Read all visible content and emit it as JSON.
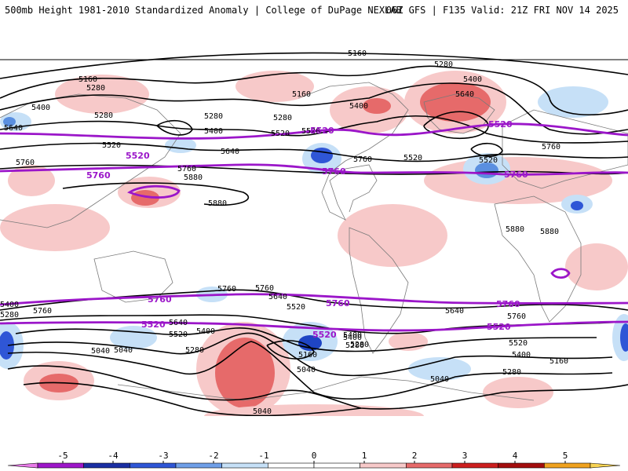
{
  "header": {
    "title_left": "500mb Height 1981-2010 Standardized Anomaly | College of DuPage NEXLAB",
    "title_right": "06Z GFS | F135 Valid: 21Z FRI NOV 14 2025"
  },
  "colors": {
    "contour_black": "#000000",
    "contour_purple": "#9b16c9",
    "land_outline": "#7a7a7a",
    "anom_pos1": "#f7c9c9",
    "anom_pos2": "#e66a6a",
    "anom_neg1": "#c6e0f7",
    "anom_neg2": "#5a8fe0",
    "anom_neg3": "#1f45c4"
  },
  "map": {
    "contour_labels": [
      "5160",
      "5280",
      "5160",
      "5280",
      "5400",
      "5160",
      "5400",
      "5640",
      "5280",
      "5280",
      "5400",
      "5400",
      "5640",
      "5520",
      "5520",
      "5280",
      "5640",
      "5760",
      "5880",
      "5760",
      "5880",
      "5760",
      "5520",
      "5760",
      "5520",
      "5520",
      "5880",
      "5880",
      "5760",
      "5760",
      "5640",
      "5520",
      "5400",
      "5280",
      "5040",
      "5040",
      "5040",
      "5400",
      "5640",
      "5520",
      "5400",
      "5280",
      "5160",
      "5040",
      "5640",
      "5760",
      "5520",
      "5400",
      "5280",
      "5160",
      "5400",
      "5280",
      "5040",
      "5760",
      "5280"
    ],
    "purple_labels": [
      "5520",
      "5520",
      "5520",
      "5760",
      "5760",
      "5760",
      "5760",
      "5760",
      "5760",
      "5520",
      "5520",
      "5520"
    ]
  },
  "colorbar": {
    "ticks": [
      "-5",
      "-4",
      "-3",
      "-2",
      "-1",
      "0",
      "1",
      "2",
      "3",
      "4",
      "5"
    ],
    "colors": [
      "#e87be8",
      "#9d16c9",
      "#1a2fa3",
      "#2f56d6",
      "#6f9fe8",
      "#c6e0f7",
      "#ffffff",
      "#ffffff",
      "#f7c9c9",
      "#e66a6a",
      "#cc1f1f",
      "#a30d0d",
      "#f0a21f",
      "#f7d354"
    ]
  }
}
